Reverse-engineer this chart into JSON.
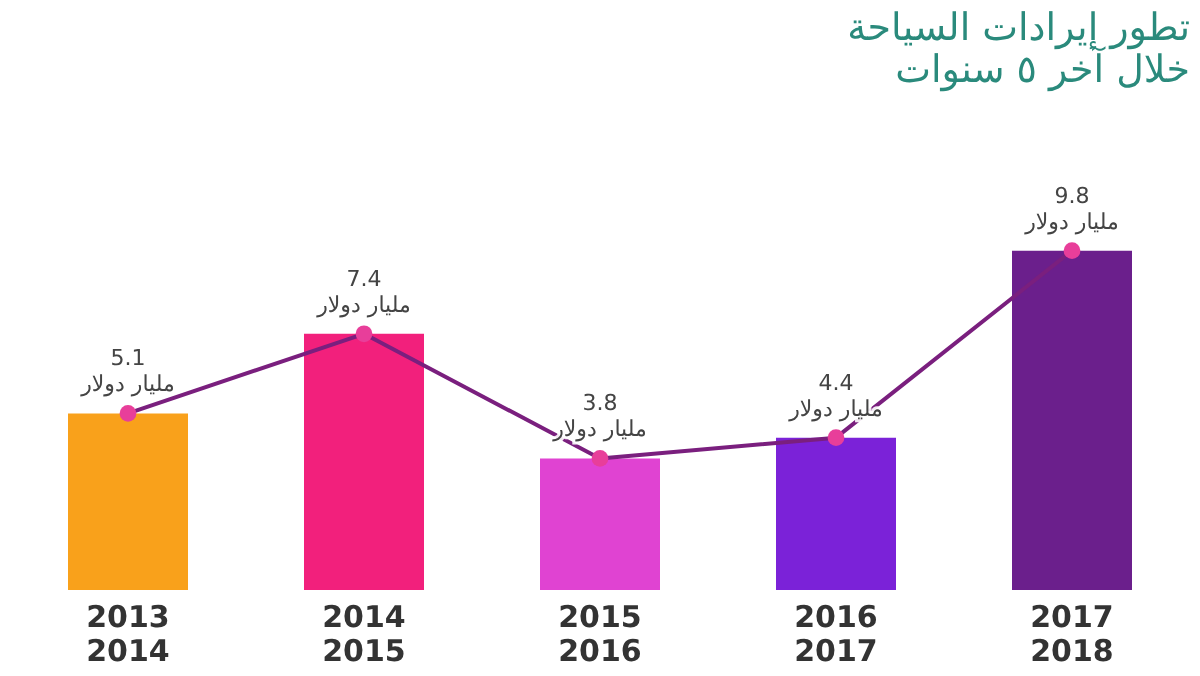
{
  "chart_data": {
    "type": "bar",
    "title": "تطور إيرادات السياحة\nخلال آخر ٥ سنوات",
    "categories": [
      "2013\n2014",
      "2014\n2015",
      "2015\n2016",
      "2016\n2017",
      "2017\n2018"
    ],
    "series": [
      {
        "values": [
          5.1,
          7.4,
          3.8,
          4.4,
          9.8
        ],
        "colors": [
          "#f9a11b",
          "#f2207c",
          "#e043d2",
          "#7b22d8",
          "#6b1f8c"
        ],
        "value_labels": [
          "5.1\nمليار دولار",
          "7.4\nمليار دولار",
          "3.8\nمليار دولار",
          "4.4\nمليار دولار",
          "9.8\nمليار دولار"
        ]
      },
      {
        "type": "line",
        "color": "#7a1f7e",
        "marker": "circle",
        "values": [
          5.1,
          7.4,
          3.8,
          4.4,
          9.8
        ]
      }
    ],
    "grid": false
  }
}
